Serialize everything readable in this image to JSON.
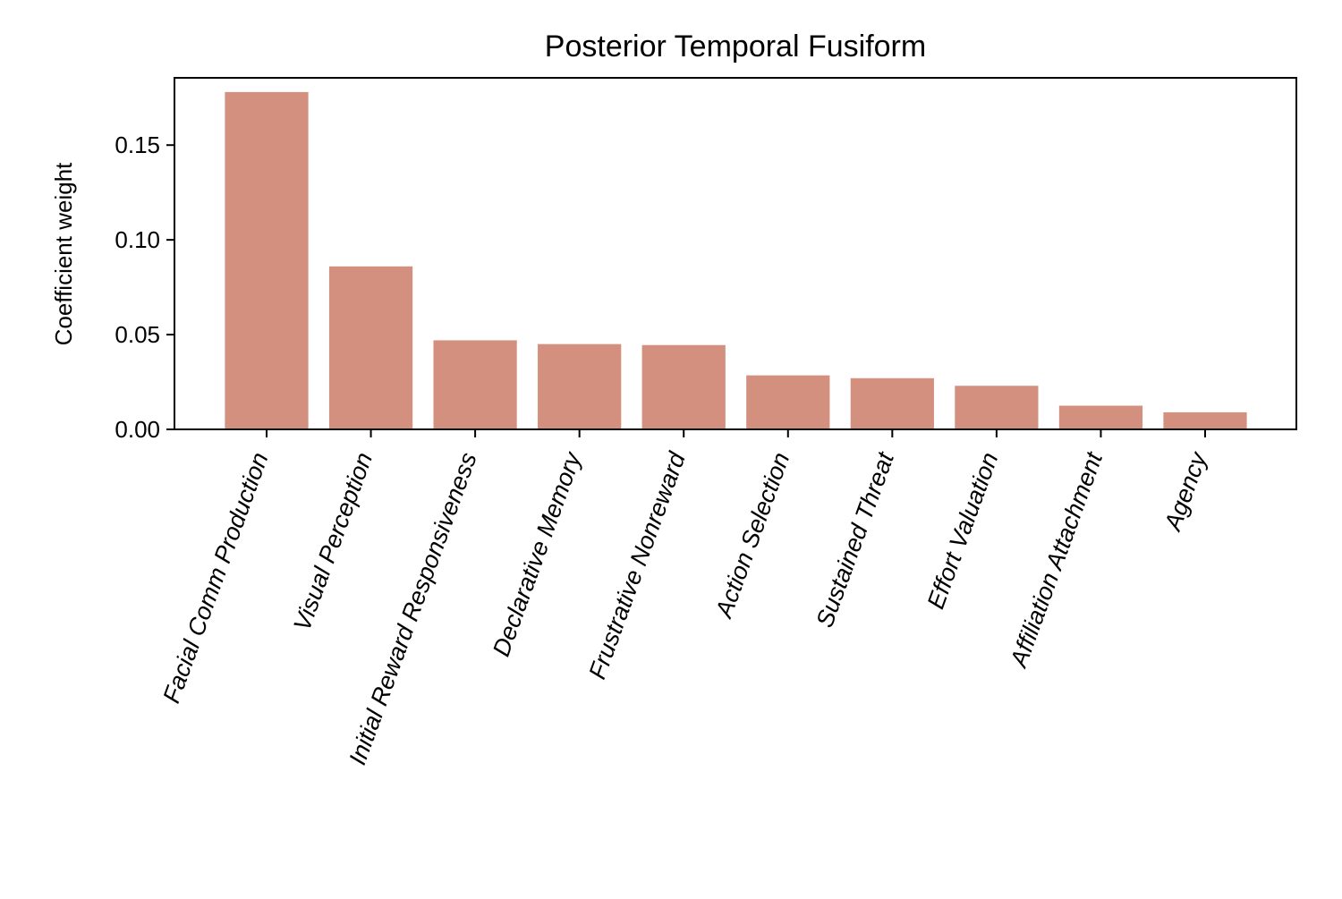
{
  "chart_data": {
    "type": "bar",
    "title": "Posterior Temporal Fusiform",
    "xlabel": "",
    "ylabel": "Coefficient weight",
    "categories": [
      "Facial Comm Production",
      "Visual Perception",
      "Initial Reward Responsiveness",
      "Declarative Memory",
      "Frustrative Nonreward",
      "Action Selection",
      "Sustained Threat",
      "Effort Valuation",
      "Affiliation Attachment",
      "Agency"
    ],
    "values": [
      0.178,
      0.086,
      0.047,
      0.045,
      0.0445,
      0.0285,
      0.027,
      0.023,
      0.0125,
      0.009
    ],
    "ylim": [
      0,
      0.1855
    ],
    "yticks": [
      0.0,
      0.05,
      0.1,
      0.15
    ],
    "ytick_labels": [
      "0.00",
      "0.05",
      "0.10",
      "0.15"
    ],
    "bar_color": "#d4907f",
    "grid": false,
    "legend": "none"
  }
}
